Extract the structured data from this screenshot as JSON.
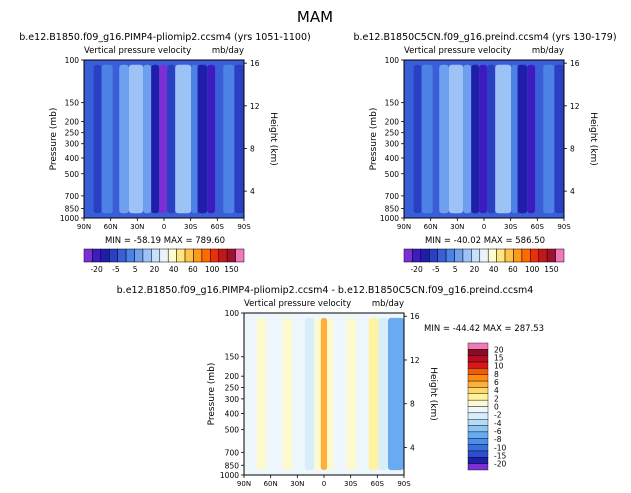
{
  "figure": {
    "season": "MAM"
  },
  "colors": {
    "full_field_scale": [
      "#7b2fd4",
      "#3c1cc0",
      "#1e1ea8",
      "#2a3fc2",
      "#3a5ed8",
      "#4c82e6",
      "#6ea0ef",
      "#9dc3f6",
      "#c8e0fb",
      "#eaf3fd",
      "#fffdd0",
      "#ffe680",
      "#ffc34a",
      "#ff9a1a",
      "#ff6a00",
      "#e83010",
      "#c01818",
      "#a01030",
      "#f07ab8"
    ],
    "diff_scale": [
      "#7b2fd4",
      "#1e1ea8",
      "#2a4fcf",
      "#3a6ee0",
      "#4c8ee8",
      "#6aaaf0",
      "#8cc4f4",
      "#b4dcf8",
      "#d8eefb",
      "#eef8fc",
      "#fdfad0",
      "#fff2a0",
      "#ffd86a",
      "#ffb03a",
      "#ff8a10",
      "#f05a0a",
      "#d81818",
      "#b80c20",
      "#8a0a28",
      "#f07ab8"
    ]
  },
  "chart_data": [
    {
      "type": "heatmap",
      "title": "b.e12.B1850.f09_g16.PIMP4-pliomip2.ccsm4 (yrs 1051-1100)",
      "subtitle_left": "Vertical pressure velocity",
      "subtitle_right": "mb/day",
      "ylabel": "Pressure (mb)",
      "y2label": "Height (km)",
      "x_ticks": [
        "90N",
        "60N",
        "30N",
        "0",
        "30S",
        "60S",
        "90S"
      ],
      "y_ticks": [
        "100",
        "150",
        "200",
        "250",
        "300",
        "400",
        "500",
        "700",
        "850",
        "1000"
      ],
      "y2_ticks": [
        "16",
        "12",
        "8",
        "4"
      ],
      "stats": "MIN = -58.19    MAX = 789.60",
      "colorbar_labels": [
        "-20",
        "-5",
        "5",
        "20",
        "40",
        "60",
        "100",
        "150"
      ],
      "bands": [
        {
          "x": 0.0,
          "w": 0.06,
          "level": 4
        },
        {
          "x": 0.06,
          "w": 0.05,
          "level": 3
        },
        {
          "x": 0.11,
          "w": 0.07,
          "level": 5
        },
        {
          "x": 0.18,
          "w": 0.04,
          "level": 4
        },
        {
          "x": 0.22,
          "w": 0.06,
          "level": 6
        },
        {
          "x": 0.28,
          "w": 0.09,
          "level": 7
        },
        {
          "x": 0.37,
          "w": 0.05,
          "level": 6
        },
        {
          "x": 0.42,
          "w": 0.05,
          "level": 2
        },
        {
          "x": 0.47,
          "w": 0.05,
          "level": 0
        },
        {
          "x": 0.52,
          "w": 0.05,
          "level": 3
        },
        {
          "x": 0.57,
          "w": 0.1,
          "level": 7
        },
        {
          "x": 0.67,
          "w": 0.04,
          "level": 5
        },
        {
          "x": 0.71,
          "w": 0.06,
          "level": 2
        },
        {
          "x": 0.77,
          "w": 0.05,
          "level": 1
        },
        {
          "x": 0.82,
          "w": 0.05,
          "level": 4
        },
        {
          "x": 0.87,
          "w": 0.07,
          "level": 5
        },
        {
          "x": 0.94,
          "w": 0.06,
          "level": 3
        }
      ]
    },
    {
      "type": "heatmap",
      "title": "b.e12.B1850C5CN.f09_g16.preind.ccsm4 (yrs 130-179)",
      "subtitle_left": "Vertical pressure velocity",
      "subtitle_right": "mb/day",
      "ylabel": "Pressure (mb)",
      "y2label": "Height (km)",
      "x_ticks": [
        "90N",
        "60N",
        "30N",
        "0",
        "30S",
        "60S",
        "90S"
      ],
      "y_ticks": [
        "100",
        "150",
        "200",
        "250",
        "300",
        "400",
        "500",
        "700",
        "850",
        "1000"
      ],
      "y2_ticks": [
        "16",
        "12",
        "8",
        "4"
      ],
      "stats": "MIN = -40.02    MAX = 586.50",
      "colorbar_labels": [
        "-20",
        "-5",
        "5",
        "20",
        "40",
        "60",
        "100",
        "150"
      ],
      "bands": [
        {
          "x": 0.0,
          "w": 0.06,
          "level": 4
        },
        {
          "x": 0.06,
          "w": 0.05,
          "level": 3
        },
        {
          "x": 0.11,
          "w": 0.07,
          "level": 5
        },
        {
          "x": 0.18,
          "w": 0.04,
          "level": 4
        },
        {
          "x": 0.22,
          "w": 0.06,
          "level": 6
        },
        {
          "x": 0.28,
          "w": 0.09,
          "level": 7
        },
        {
          "x": 0.37,
          "w": 0.05,
          "level": 6
        },
        {
          "x": 0.42,
          "w": 0.05,
          "level": 2
        },
        {
          "x": 0.47,
          "w": 0.05,
          "level": 1
        },
        {
          "x": 0.52,
          "w": 0.05,
          "level": 3
        },
        {
          "x": 0.57,
          "w": 0.1,
          "level": 7
        },
        {
          "x": 0.67,
          "w": 0.04,
          "level": 5
        },
        {
          "x": 0.71,
          "w": 0.06,
          "level": 2
        },
        {
          "x": 0.77,
          "w": 0.05,
          "level": 1
        },
        {
          "x": 0.82,
          "w": 0.05,
          "level": 4
        },
        {
          "x": 0.87,
          "w": 0.07,
          "level": 5
        },
        {
          "x": 0.94,
          "w": 0.06,
          "level": 3
        }
      ]
    },
    {
      "type": "heatmap",
      "title": "b.e12.B1850.f09_g16.PIMP4-pliomip2.ccsm4 - b.e12.B1850C5CN.f09_g16.preind.ccsm4",
      "subtitle_left": "Vertical pressure velocity",
      "subtitle_right": "mb/day",
      "ylabel": "Pressure (mb)",
      "y2label": "Height (km)",
      "x_ticks": [
        "90N",
        "60N",
        "30N",
        "0",
        "30S",
        "60S",
        "90S"
      ],
      "y_ticks": [
        "100",
        "150",
        "200",
        "250",
        "300",
        "400",
        "500",
        "700",
        "850",
        "1000"
      ],
      "y2_ticks": [
        "16",
        "12",
        "8",
        "4"
      ],
      "stats": "MIN = -44.42    MAX = 287.53",
      "colorbar_labels": [
        "20",
        "15",
        "10",
        "8",
        "6",
        "4",
        "2",
        "0",
        "-2",
        "-4",
        "-6",
        "-8",
        "-10",
        "-15",
        "-20"
      ],
      "bands": [
        {
          "x": 0.0,
          "w": 0.08,
          "level": 9
        },
        {
          "x": 0.08,
          "w": 0.06,
          "level": 10
        },
        {
          "x": 0.14,
          "w": 0.1,
          "level": 9
        },
        {
          "x": 0.24,
          "w": 0.06,
          "level": 10
        },
        {
          "x": 0.3,
          "w": 0.08,
          "level": 9
        },
        {
          "x": 0.38,
          "w": 0.06,
          "level": 8
        },
        {
          "x": 0.44,
          "w": 0.04,
          "level": 10
        },
        {
          "x": 0.48,
          "w": 0.04,
          "level": 13
        },
        {
          "x": 0.52,
          "w": 0.04,
          "level": 10
        },
        {
          "x": 0.56,
          "w": 0.08,
          "level": 9
        },
        {
          "x": 0.64,
          "w": 0.06,
          "level": 10
        },
        {
          "x": 0.7,
          "w": 0.08,
          "level": 9
        },
        {
          "x": 0.78,
          "w": 0.06,
          "level": 11
        },
        {
          "x": 0.84,
          "w": 0.06,
          "level": 8
        },
        {
          "x": 0.9,
          "w": 0.1,
          "level": 5
        }
      ]
    }
  ]
}
